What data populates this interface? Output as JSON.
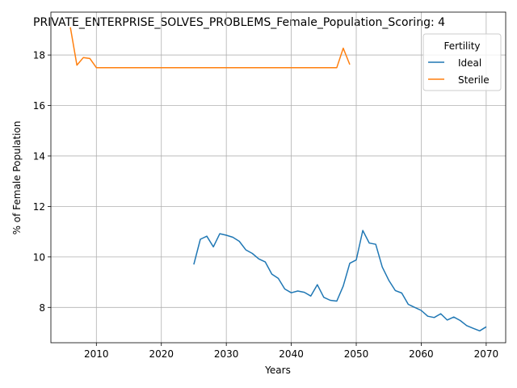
{
  "chart_data": {
    "type": "line",
    "title": "PRIVATE_ENTERPRISE_SOLVES_PROBLEMS_Female_Population_Scoring: 4",
    "xlabel": "Years",
    "ylabel": "% of Female Population",
    "xlim": [
      2003,
      2073
    ],
    "ylim": [
      6.6,
      19.7
    ],
    "xticks": [
      2010,
      2020,
      2030,
      2040,
      2050,
      2060,
      2070
    ],
    "yticks": [
      8,
      10,
      12,
      14,
      16,
      18
    ],
    "xtick_labels": [
      "2010",
      "2020",
      "2030",
      "2040",
      "2050",
      "2060",
      "2070"
    ],
    "ytick_labels": [
      "8",
      "10",
      "12",
      "14",
      "16",
      "18"
    ],
    "grid": true,
    "legend": {
      "title": "Fertility",
      "placement": "top-right"
    },
    "series": [
      {
        "name": "Ideal",
        "color": "#1f77b4",
        "x": [
          2025,
          2026,
          2027,
          2028,
          2029,
          2030,
          2031,
          2032,
          2033,
          2034,
          2035,
          2036,
          2037,
          2038,
          2039,
          2040,
          2041,
          2042,
          2043,
          2044,
          2045,
          2046,
          2047,
          2048,
          2049,
          2050,
          2051,
          2052,
          2053,
          2054,
          2055,
          2056,
          2057,
          2058,
          2059,
          2060,
          2061,
          2062,
          2063,
          2064,
          2065,
          2066,
          2067,
          2068,
          2069,
          2070
        ],
        "y": [
          9.7,
          10.7,
          10.82,
          10.4,
          10.92,
          10.86,
          10.78,
          10.62,
          10.28,
          10.14,
          9.92,
          9.8,
          9.32,
          9.15,
          8.73,
          8.58,
          8.65,
          8.6,
          8.45,
          8.9,
          8.4,
          8.28,
          8.25,
          8.85,
          9.75,
          9.88,
          11.05,
          10.55,
          10.5,
          9.6,
          9.08,
          8.67,
          8.57,
          8.12,
          8.0,
          7.88,
          7.65,
          7.6,
          7.75,
          7.5,
          7.62,
          7.48,
          7.28,
          7.17,
          7.07,
          7.23
        ]
      },
      {
        "name": "Sterile",
        "color": "#ff7f0e",
        "x": [
          2006,
          2007,
          2008,
          2009,
          2010,
          2011,
          2012,
          2013,
          2014,
          2015,
          2016,
          2017,
          2018,
          2019,
          2020,
          2021,
          2022,
          2023,
          2024,
          2025,
          2026,
          2027,
          2028,
          2029,
          2030,
          2031,
          2032,
          2033,
          2034,
          2035,
          2036,
          2037,
          2038,
          2039,
          2040,
          2041,
          2042,
          2043,
          2044,
          2045,
          2046,
          2047,
          2048,
          2049
        ],
        "y": [
          19.1,
          17.6,
          17.9,
          17.86,
          17.5,
          17.5,
          17.5,
          17.5,
          17.5,
          17.5,
          17.5,
          17.5,
          17.5,
          17.5,
          17.5,
          17.5,
          17.5,
          17.5,
          17.5,
          17.5,
          17.5,
          17.5,
          17.5,
          17.5,
          17.5,
          17.5,
          17.5,
          17.5,
          17.5,
          17.5,
          17.5,
          17.5,
          17.5,
          17.5,
          17.5,
          17.5,
          17.5,
          17.5,
          17.5,
          17.5,
          17.5,
          17.5,
          18.27,
          17.62
        ]
      }
    ]
  }
}
